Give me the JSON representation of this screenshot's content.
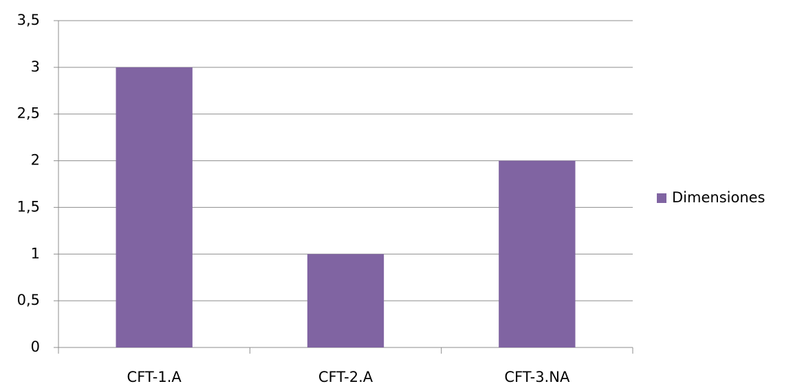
{
  "chart_data": {
    "type": "bar",
    "categories": [
      "CFT-1.A",
      "CFT-2.A",
      "CFT-3.NA"
    ],
    "series": [
      {
        "name": "Dimensiones",
        "color": "#8064a2",
        "values": [
          3,
          1,
          2
        ]
      }
    ],
    "ylim": [
      0,
      3.5
    ],
    "yticks": [
      0,
      {
        "value": 0.5,
        "label": "0,5"
      },
      1,
      {
        "value": 1.5,
        "label": "1,5"
      },
      2,
      {
        "value": 2.5,
        "label": "2,5"
      },
      3,
      {
        "value": 3.5,
        "label": "3,5"
      }
    ],
    "grid": true,
    "legend": "right"
  }
}
